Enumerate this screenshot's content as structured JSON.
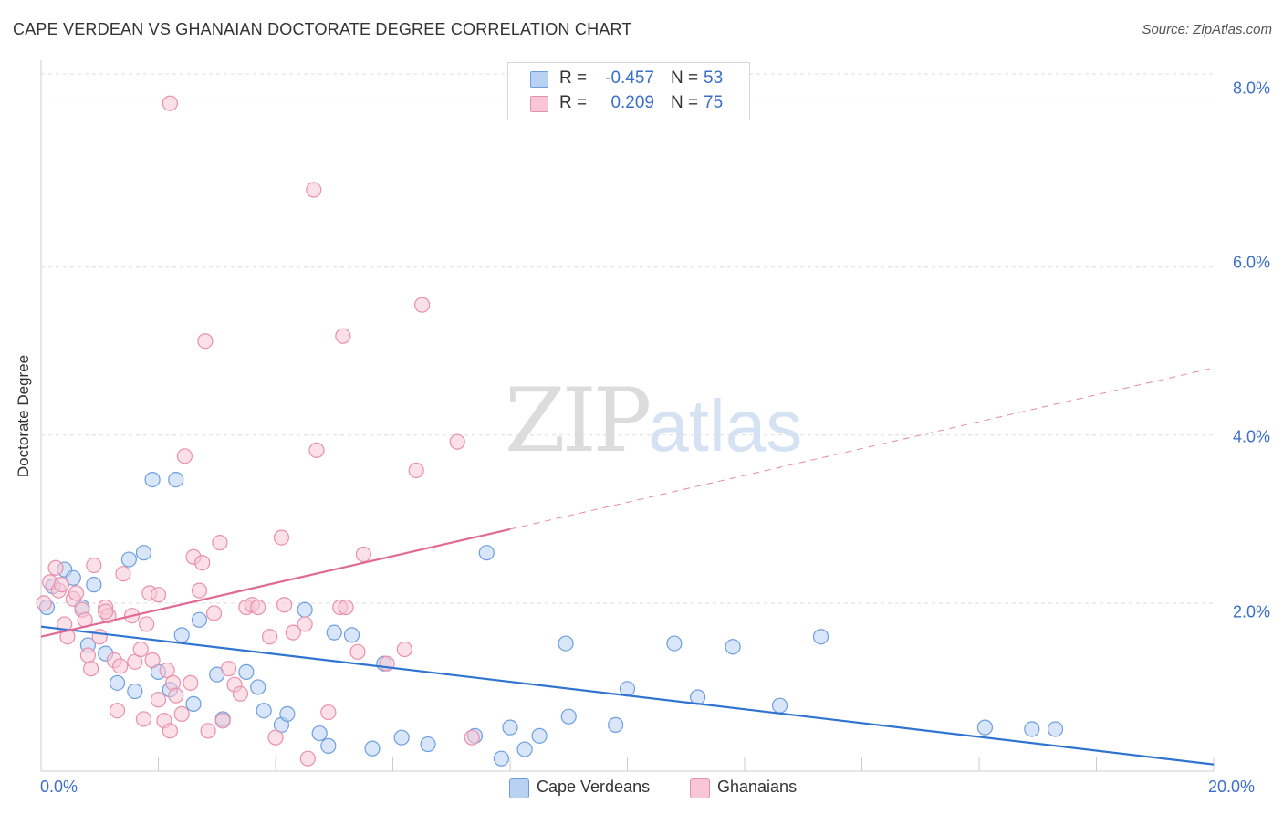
{
  "header": {
    "title": "CAPE VERDEAN VS GHANAIAN DOCTORATE DEGREE CORRELATION CHART",
    "source": "Source: ZipAtlas.com"
  },
  "watermark": {
    "zip": "ZIP",
    "atlas": "atlas"
  },
  "colors": {
    "blue_fill": "#b9d2f4",
    "blue_stroke": "#6d9ee0",
    "blue_line": "#2f74d0",
    "pink_fill": "#f8c6d6",
    "pink_stroke": "#e990ac",
    "pink_line": "#e06a94",
    "grid": "#dddddd",
    "tick_text": "#3b6fc9"
  },
  "legend_top": [
    {
      "r_label": "R =",
      "r_value": "-0.457",
      "n_label": "N =",
      "n_value": "53",
      "color": "#b9d2f4",
      "stroke": "#6d9ee0"
    },
    {
      "r_label": "R =",
      "r_value": "0.209",
      "n_label": "N =",
      "n_value": "75",
      "color": "#f8c6d6",
      "stroke": "#e990ac"
    }
  ],
  "legend_bottom": [
    {
      "label": "Cape Verdeans",
      "color": "#b9d2f4",
      "stroke": "#6d9ee0"
    },
    {
      "label": "Ghanaians",
      "color": "#f8c6d6",
      "stroke": "#e990ac"
    }
  ],
  "chart_data": {
    "type": "scatter",
    "title": "CAPE VERDEAN VS GHANAIAN DOCTORATE DEGREE CORRELATION CHART",
    "xlabel": "",
    "ylabel": "Doctorate Degree",
    "xlim": [
      0,
      20
    ],
    "ylim": [
      0,
      8.3
    ],
    "x_tick_labels": [
      "0.0%",
      "20.0%"
    ],
    "y_ticks": [
      2,
      4,
      6,
      8
    ],
    "y_tick_labels": [
      "2.0%",
      "4.0%",
      "6.0%",
      "8.0%"
    ],
    "grid": true,
    "series": [
      {
        "name": "Cape Verdeans",
        "r": -0.457,
        "n": 53,
        "trend": {
          "x": [
            0,
            20
          ],
          "y": [
            1.72,
            0.08
          ],
          "dashed_x": null
        },
        "points": [
          [
            0.1,
            1.95
          ],
          [
            0.2,
            2.2
          ],
          [
            0.4,
            2.4
          ],
          [
            0.55,
            2.3
          ],
          [
            0.7,
            1.95
          ],
          [
            0.8,
            1.5
          ],
          [
            0.9,
            2.22
          ],
          [
            1.1,
            1.4
          ],
          [
            1.3,
            1.05
          ],
          [
            1.5,
            2.52
          ],
          [
            1.6,
            0.95
          ],
          [
            1.75,
            2.6
          ],
          [
            1.9,
            3.47
          ],
          [
            2.0,
            1.18
          ],
          [
            2.2,
            0.97
          ],
          [
            2.3,
            3.47
          ],
          [
            2.4,
            1.62
          ],
          [
            2.6,
            0.8
          ],
          [
            2.7,
            1.8
          ],
          [
            3.0,
            1.15
          ],
          [
            3.1,
            0.62
          ],
          [
            3.5,
            1.18
          ],
          [
            3.7,
            1.0
          ],
          [
            3.8,
            0.72
          ],
          [
            4.1,
            0.55
          ],
          [
            4.2,
            0.68
          ],
          [
            4.5,
            1.92
          ],
          [
            4.75,
            0.45
          ],
          [
            4.9,
            0.3
          ],
          [
            5.0,
            1.65
          ],
          [
            5.3,
            1.62
          ],
          [
            5.65,
            0.27
          ],
          [
            5.85,
            1.28
          ],
          [
            6.15,
            0.4
          ],
          [
            6.6,
            0.32
          ],
          [
            7.4,
            0.42
          ],
          [
            7.6,
            2.6
          ],
          [
            7.85,
            0.15
          ],
          [
            8.0,
            0.52
          ],
          [
            8.25,
            0.26
          ],
          [
            8.5,
            0.42
          ],
          [
            8.95,
            1.52
          ],
          [
            9.0,
            0.65
          ],
          [
            9.8,
            0.55
          ],
          [
            10.0,
            0.98
          ],
          [
            10.8,
            1.52
          ],
          [
            11.2,
            0.88
          ],
          [
            11.8,
            1.48
          ],
          [
            12.6,
            0.78
          ],
          [
            13.3,
            1.6
          ],
          [
            16.1,
            0.52
          ],
          [
            16.9,
            0.5
          ],
          [
            17.3,
            0.5
          ]
        ]
      },
      {
        "name": "Ghanaians",
        "r": 0.209,
        "n": 75,
        "trend": {
          "x": [
            0,
            8.0
          ],
          "y": [
            1.6,
            2.88
          ],
          "dashed_x": [
            8.0,
            20
          ],
          "dashed_y": [
            2.88,
            4.8
          ]
        },
        "points": [
          [
            0.05,
            2.0
          ],
          [
            0.15,
            2.25
          ],
          [
            0.25,
            2.42
          ],
          [
            0.3,
            2.15
          ],
          [
            0.35,
            2.22
          ],
          [
            0.4,
            1.75
          ],
          [
            0.45,
            1.6
          ],
          [
            0.55,
            2.05
          ],
          [
            0.6,
            2.12
          ],
          [
            0.7,
            1.92
          ],
          [
            0.75,
            1.8
          ],
          [
            0.8,
            1.38
          ],
          [
            0.85,
            1.22
          ],
          [
            0.9,
            2.45
          ],
          [
            1.0,
            1.6
          ],
          [
            1.1,
            1.95
          ],
          [
            1.15,
            1.85
          ],
          [
            1.25,
            1.32
          ],
          [
            1.3,
            0.72
          ],
          [
            1.35,
            1.25
          ],
          [
            1.4,
            2.35
          ],
          [
            1.55,
            1.85
          ],
          [
            1.6,
            1.3
          ],
          [
            1.7,
            1.45
          ],
          [
            1.75,
            0.62
          ],
          [
            1.8,
            1.75
          ],
          [
            1.85,
            2.12
          ],
          [
            1.9,
            1.32
          ],
          [
            2.0,
            0.85
          ],
          [
            2.1,
            0.6
          ],
          [
            2.15,
            1.2
          ],
          [
            2.2,
            0.48
          ],
          [
            2.25,
            1.05
          ],
          [
            2.3,
            0.9
          ],
          [
            2.4,
            0.68
          ],
          [
            2.45,
            3.75
          ],
          [
            2.55,
            1.05
          ],
          [
            2.6,
            2.55
          ],
          [
            2.7,
            2.15
          ],
          [
            2.75,
            2.48
          ],
          [
            2.8,
            5.12
          ],
          [
            2.85,
            0.48
          ],
          [
            2.95,
            1.88
          ],
          [
            3.05,
            2.72
          ],
          [
            3.1,
            0.6
          ],
          [
            3.2,
            1.22
          ],
          [
            3.3,
            1.03
          ],
          [
            3.4,
            0.92
          ],
          [
            3.5,
            1.95
          ],
          [
            3.6,
            1.98
          ],
          [
            3.7,
            1.95
          ],
          [
            3.9,
            1.6
          ],
          [
            4.0,
            0.4
          ],
          [
            4.1,
            2.78
          ],
          [
            4.15,
            1.98
          ],
          [
            4.3,
            1.65
          ],
          [
            4.5,
            1.75
          ],
          [
            4.55,
            0.15
          ],
          [
            4.65,
            6.92
          ],
          [
            4.7,
            3.82
          ],
          [
            4.9,
            0.7
          ],
          [
            5.1,
            1.95
          ],
          [
            5.2,
            1.95
          ],
          [
            5.4,
            1.42
          ],
          [
            5.5,
            2.58
          ],
          [
            5.9,
            1.28
          ],
          [
            6.2,
            1.45
          ],
          [
            6.4,
            3.58
          ],
          [
            6.5,
            5.55
          ],
          [
            7.1,
            3.92
          ],
          [
            7.35,
            0.4
          ],
          [
            2.2,
            7.95
          ],
          [
            5.15,
            5.18
          ],
          [
            2.0,
            2.1
          ],
          [
            1.1,
            1.9
          ]
        ]
      }
    ]
  }
}
